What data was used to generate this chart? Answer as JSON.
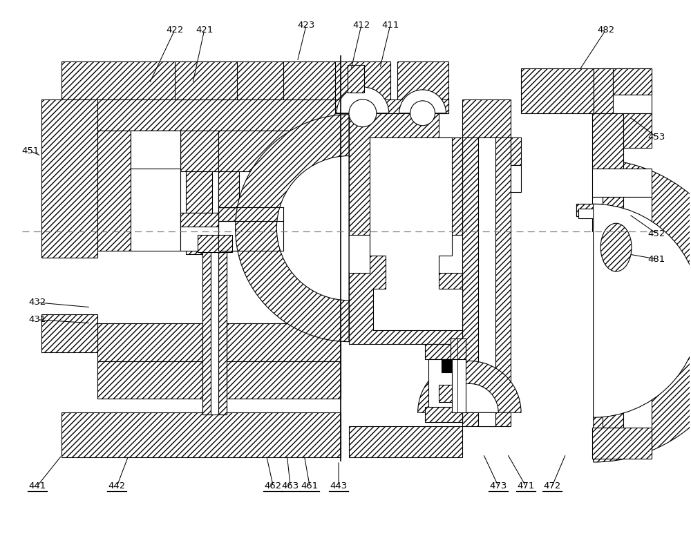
{
  "bg_color": "#ffffff",
  "ec": "#000000",
  "hatch": "////",
  "lw": 0.8,
  "fig_width": 10.0,
  "fig_height": 7.73,
  "labels": [
    [
      "411",
      565,
      35,
      550,
      98,
      false
    ],
    [
      "412",
      523,
      35,
      508,
      100,
      false
    ],
    [
      "421",
      295,
      42,
      278,
      120,
      false
    ],
    [
      "422",
      252,
      42,
      215,
      120,
      false
    ],
    [
      "423",
      443,
      35,
      430,
      88,
      false
    ],
    [
      "431",
      52,
      463,
      130,
      468,
      false
    ],
    [
      "432",
      52,
      438,
      130,
      445,
      false
    ],
    [
      "441",
      52,
      705,
      88,
      660,
      true
    ],
    [
      "442",
      168,
      705,
      185,
      660,
      true
    ],
    [
      "443",
      490,
      705,
      490,
      668,
      true
    ],
    [
      "451",
      42,
      218,
      58,
      225,
      false
    ],
    [
      "452",
      952,
      338,
      912,
      310,
      false
    ],
    [
      "453",
      952,
      198,
      912,
      168,
      false
    ],
    [
      "461",
      448,
      705,
      440,
      660,
      true
    ],
    [
      "462",
      395,
      705,
      385,
      660,
      true
    ],
    [
      "463",
      420,
      705,
      415,
      660,
      true
    ],
    [
      "471",
      762,
      705,
      735,
      658,
      true
    ],
    [
      "472",
      800,
      705,
      820,
      658,
      true
    ],
    [
      "473",
      722,
      705,
      700,
      658,
      true
    ],
    [
      "481",
      952,
      375,
      912,
      368,
      false
    ],
    [
      "482",
      878,
      42,
      840,
      100,
      false
    ]
  ]
}
